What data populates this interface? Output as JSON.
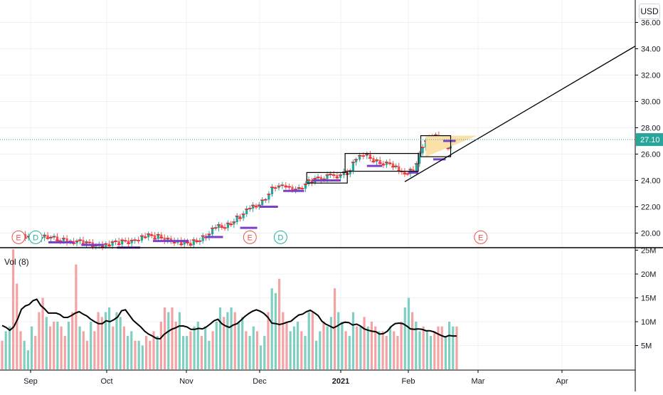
{
  "currency_label": "USD",
  "colors": {
    "up": "#26a69a",
    "down": "#ef5350",
    "up_volume": "#7fcfc3",
    "down_volume": "#f3a3a3",
    "pattern_fill": "#fbe0a8",
    "purple_level": "#7b3fc8",
    "red_tick": "#e8262b",
    "price_label_bg": "#26a69a",
    "grid": "#eef0f3",
    "earnings_marker": "#e8534f",
    "dividend_marker": "#23b0a6"
  },
  "chart_data": [
    {
      "type": "candlestick",
      "ylim": [
        18.5,
        36
      ],
      "y_ticks": [
        "20.00",
        "22.00",
        "24.00",
        "26.00",
        "28.00",
        "30.00",
        "32.00",
        "34.00",
        "36.00"
      ],
      "x_labels": [
        "Sep",
        "Oct",
        "Nov",
        "Dec",
        "2021",
        "Feb",
        "Mar",
        "Apr"
      ],
      "last_price": "27.10",
      "close_series": [
        {
          "date": "2020-08-26",
          "close": 19.8
        },
        {
          "date": "2020-08-31",
          "close": 19.6
        },
        {
          "date": "2020-09-04",
          "close": 19.7
        },
        {
          "date": "2020-09-09",
          "close": 19.6
        },
        {
          "date": "2020-09-14",
          "close": 19.5
        },
        {
          "date": "2020-09-18",
          "close": 19.4
        },
        {
          "date": "2020-09-23",
          "close": 19.2
        },
        {
          "date": "2020-09-28",
          "close": 19.1
        },
        {
          "date": "2020-10-02",
          "close": 19.2
        },
        {
          "date": "2020-10-07",
          "close": 19.3
        },
        {
          "date": "2020-10-12",
          "close": 19.5
        },
        {
          "date": "2020-10-16",
          "close": 19.8
        },
        {
          "date": "2020-10-21",
          "close": 19.7
        },
        {
          "date": "2020-10-26",
          "close": 19.5
        },
        {
          "date": "2020-10-30",
          "close": 19.2
        },
        {
          "date": "2020-11-04",
          "close": 19.3
        },
        {
          "date": "2020-11-09",
          "close": 19.8
        },
        {
          "date": "2020-11-13",
          "close": 20.4
        },
        {
          "date": "2020-11-18",
          "close": 20.6
        },
        {
          "date": "2020-11-23",
          "close": 21.3
        },
        {
          "date": "2020-11-27",
          "close": 21.8
        },
        {
          "date": "2020-12-02",
          "close": 22.4
        },
        {
          "date": "2020-12-07",
          "close": 23.6
        },
        {
          "date": "2020-12-11",
          "close": 23.4
        },
        {
          "date": "2020-12-16",
          "close": 23.4
        },
        {
          "date": "2020-12-21",
          "close": 24.0
        },
        {
          "date": "2020-12-28",
          "close": 24.3
        },
        {
          "date": "2021-01-04",
          "close": 24.5
        },
        {
          "date": "2021-01-08",
          "close": 25.7
        },
        {
          "date": "2021-01-13",
          "close": 25.8
        },
        {
          "date": "2021-01-19",
          "close": 25.4
        },
        {
          "date": "2021-01-25",
          "close": 25.1
        },
        {
          "date": "2021-01-29",
          "close": 24.5
        },
        {
          "date": "2021-02-03",
          "close": 24.8
        },
        {
          "date": "2021-02-08",
          "close": 27.0
        },
        {
          "date": "2021-02-12",
          "close": 27.3
        },
        {
          "date": "2021-02-17",
          "close": 26.6
        },
        {
          "date": "2021-02-19",
          "close": 27.1
        }
      ],
      "purple_levels": [
        {
          "from": "2020-09-08",
          "to": "2020-09-18",
          "value": 19.3
        },
        {
          "from": "2020-09-21",
          "to": "2020-09-30",
          "value": 19.1
        },
        {
          "from": "2020-10-05",
          "to": "2020-10-14",
          "value": 18.9
        },
        {
          "from": "2020-10-19",
          "to": "2020-11-02",
          "value": 19.4
        },
        {
          "from": "2020-11-09",
          "to": "2020-11-16",
          "value": 19.7
        },
        {
          "from": "2020-11-23",
          "to": "2020-11-30",
          "value": 20.4
        },
        {
          "from": "2020-12-01",
          "to": "2020-12-08",
          "value": 22.0
        },
        {
          "from": "2020-12-10",
          "to": "2020-12-18",
          "value": 23.2
        },
        {
          "from": "2020-12-21",
          "to": "2021-01-01",
          "value": 24.0
        },
        {
          "from": "2021-01-13",
          "to": "2021-01-20",
          "value": 25.1
        },
        {
          "from": "2021-02-01",
          "to": "2021-02-05",
          "value": 24.6
        },
        {
          "from": "2021-02-11",
          "to": "2021-02-16",
          "value": 25.6
        },
        {
          "from": "2021-02-15",
          "to": "2021-02-20",
          "value": 27.0
        }
      ],
      "event_markers": [
        {
          "label": "E",
          "kind": "earnings",
          "date": "2020-08-26",
          "value": 19.9
        },
        {
          "label": "D",
          "kind": "dividend",
          "date": "2020-09-03",
          "value": 19.9
        },
        {
          "label": "E",
          "kind": "earnings",
          "date": "2020-11-27",
          "value": 19.9
        },
        {
          "label": "D",
          "kind": "dividend",
          "date": "2020-12-09",
          "value": 19.9
        },
        {
          "label": "E",
          "kind": "earnings",
          "date": "2021-03-02",
          "value": 19.9
        }
      ],
      "grid": true
    },
    {
      "type": "bar",
      "legend": "Vol (8)",
      "ylim": [
        0,
        25000000
      ],
      "y_ticks": [
        "5M",
        "10M",
        "15M",
        "20M",
        "25M"
      ],
      "volume_millions": [
        6,
        8,
        9,
        28,
        18,
        8,
        6,
        4,
        9,
        7,
        12,
        15,
        11,
        9,
        10,
        10,
        9,
        7,
        10,
        12,
        22,
        9,
        8,
        6,
        10,
        8,
        12,
        11,
        12,
        13,
        9,
        12,
        11,
        9,
        7,
        8,
        6,
        6,
        5,
        7,
        6,
        8,
        7,
        10,
        13,
        12,
        13,
        10,
        12,
        7,
        7,
        8,
        9,
        10,
        7,
        9,
        6,
        8,
        10,
        13,
        11,
        12,
        13,
        12,
        10,
        11,
        8,
        7,
        9,
        8,
        5,
        7,
        12,
        17,
        16,
        19,
        12,
        10,
        8,
        9,
        10,
        8,
        7,
        12,
        12,
        6,
        8,
        10,
        9,
        11,
        17,
        12,
        10,
        8,
        7,
        12,
        9,
        9,
        11,
        9,
        10,
        9,
        8,
        8,
        7,
        9,
        8,
        7,
        10,
        13,
        15,
        12,
        10,
        8,
        9,
        8,
        7,
        8,
        9,
        9,
        7,
        10,
        9,
        9
      ],
      "vol_ma": [
        9.2,
        8.8,
        8.2,
        8.9,
        10.5,
        12.6,
        13.3,
        13.6,
        14.4,
        14.7,
        13.4,
        12.7,
        11.8,
        11.8,
        11.8,
        11.5,
        10.9,
        10.9,
        11.3,
        11.8,
        12.1,
        11.6,
        11.2,
        10.5,
        10.0,
        9.6,
        9.6,
        10.2,
        10.0,
        10.4,
        11.0,
        12.3,
        12.5,
        11.4,
        10.3,
        9.6,
        8.9,
        8.0,
        7.4,
        7.0,
        6.5,
        6.4,
        7.3,
        7.9,
        8.4,
        8.7,
        9.1,
        9.1,
        8.9,
        8.4,
        8.4,
        8.6,
        8.5,
        8.9,
        9.5,
        10.2,
        10.5,
        9.6,
        9.1,
        8.8,
        9.3,
        9.6,
        10.3,
        11.1,
        11.7,
        12.2,
        12.5,
        12.2,
        11.7,
        10.9,
        9.7,
        9.6,
        9.4,
        9.6,
        9.9,
        10.1,
        10.8,
        11.4,
        11.6,
        12.1,
        12.4,
        11.9,
        11.3,
        10.1,
        9.5,
        9.1,
        8.7,
        9.1,
        9.6,
        9.9,
        9.8,
        9.3,
        9.5,
        9.1,
        8.5,
        8.2,
        8.0,
        7.9,
        7.4,
        7.5,
        8.0,
        9.0,
        9.6,
        9.7,
        9.6,
        9.1,
        8.5,
        8.4,
        8.5,
        8.4,
        8.1,
        8.1,
        7.9,
        7.5,
        7.1,
        6.8,
        7.1,
        7.0,
        7.0
      ],
      "grid": true
    }
  ]
}
